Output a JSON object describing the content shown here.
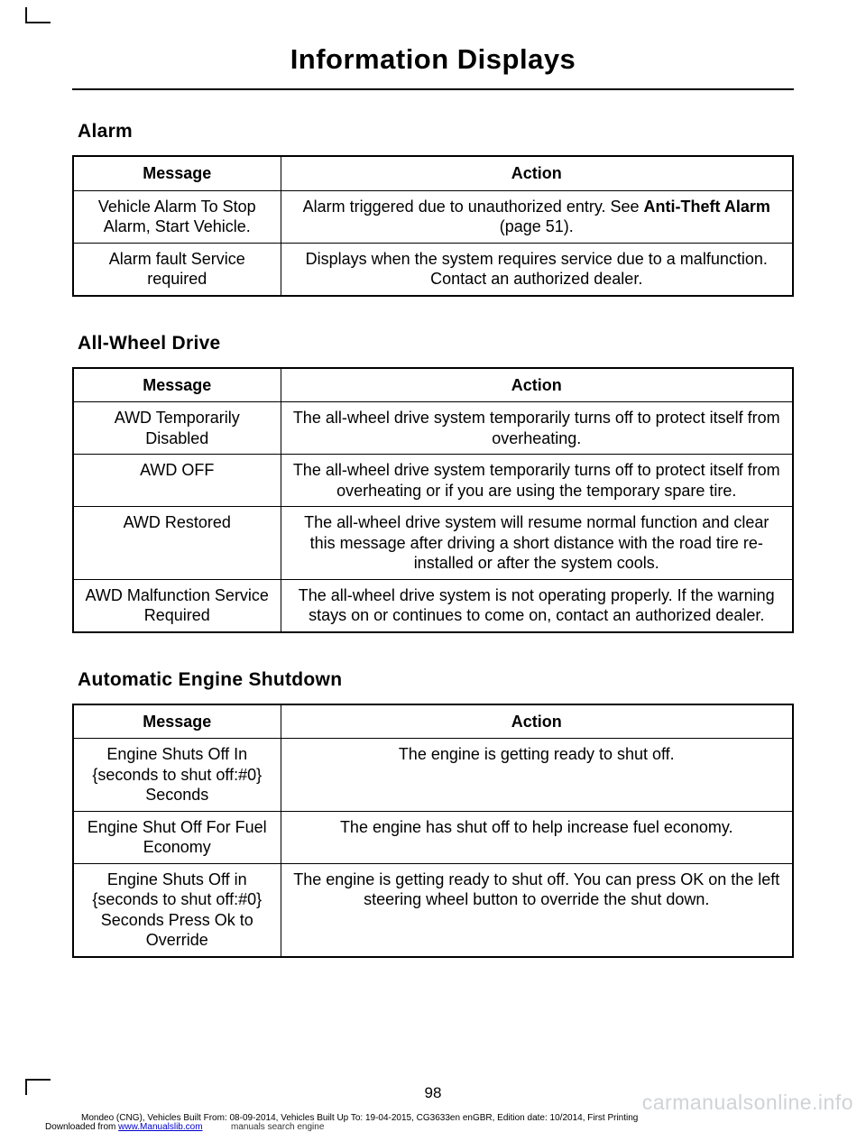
{
  "page_title": "Information Displays",
  "page_number": "98",
  "sections": [
    {
      "heading": "Alarm",
      "columns": [
        "Message",
        "Action"
      ],
      "rows": [
        {
          "message": "Vehicle Alarm To Stop Alarm, Start Vehicle.",
          "action_pre": "Alarm triggered due to unauthorized entry.  See ",
          "action_bold": "Anti-Theft Alarm",
          "action_post": " (page 51)."
        },
        {
          "message": "Alarm fault Service required",
          "action": "Displays when the system requires service due to a malfunction. Contact an authorized dealer."
        }
      ]
    },
    {
      "heading": "All-Wheel Drive",
      "columns": [
        "Message",
        "Action"
      ],
      "rows": [
        {
          "message": "AWD Temporarily Disabled",
          "action": "The all-wheel drive system temporarily turns off to protect itself from overheating."
        },
        {
          "message": "AWD OFF",
          "action": "The all-wheel drive system temporarily turns off to protect itself from overheating or if you are using the temporary spare tire."
        },
        {
          "message": "AWD Restored",
          "action": "The all-wheel drive system will resume normal function and clear this message after driving a short distance with the road tire re-installed or after the system cools."
        },
        {
          "message": "AWD Malfunction Service Required",
          "action": "The all-wheel drive system is not operating properly. If the warning stays on or continues to come on, contact an authorized dealer."
        }
      ]
    },
    {
      "heading": "Automatic Engine Shutdown",
      "columns": [
        "Message",
        "Action"
      ],
      "rows": [
        {
          "message": "Engine Shuts Off In {seconds to shut off:#0} Seconds",
          "action": "The engine is getting ready to shut off."
        },
        {
          "message": "Engine Shut Off For Fuel Economy",
          "action": "The engine has shut off to help increase fuel economy."
        },
        {
          "message": "Engine Shuts Off in {seconds to shut off:#0} Seconds Press Ok to Override",
          "action": "The engine is getting ready to shut off. You can press OK on the left steering wheel button to override the shut down."
        }
      ]
    }
  ],
  "footer": {
    "meta": "Mondeo (CNG), Vehicles Built From: 08-09-2014, Vehicles Built Up To: 19-04-2015, CG3633en enGBR, Edition date: 10/2014, First Printing",
    "download_prefix": "Downloaded from ",
    "download_link_text": "www.Manualslib.com",
    "download_suffix": " manuals search engine"
  },
  "watermark": "carmanualsonline.info"
}
